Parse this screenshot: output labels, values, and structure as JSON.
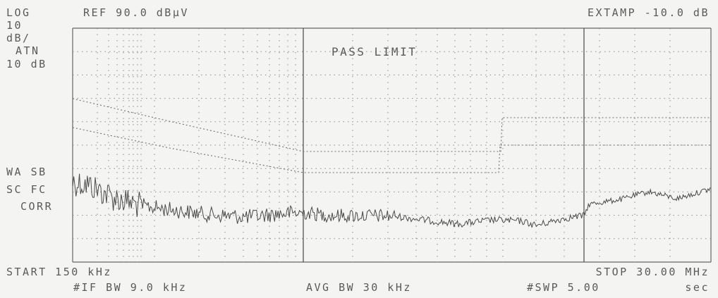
{
  "header": {
    "scale_mode": "LOG",
    "reference_level": "REF 90.0 dBµV",
    "external_amp": "EXTAMP -10.0 dB"
  },
  "left_annotations": {
    "scale_value": "10",
    "scale_unit": "dB/",
    "attenuation_label": "ATN",
    "attenuation_value": "10 dB",
    "detector_line1": "WA SB",
    "detector_line2": "SC FC",
    "detector_line3": "CORR"
  },
  "limit_status": "PASS LIMIT",
  "footer": {
    "start_freq": "START 150 kHz",
    "stop_freq": "STOP 30.00 MHz",
    "if_bandwidth": "#IF BW 9.0 kHz",
    "avg_bandwidth": "AVG BW 30 kHz",
    "sweep_label": "#SWP 5.00",
    "sweep_unit": "sec"
  },
  "colors": {
    "background": "#f4f4f2",
    "trace": "#4a4a4a",
    "graticule": "#666666",
    "limit_line": "#707070"
  }
}
